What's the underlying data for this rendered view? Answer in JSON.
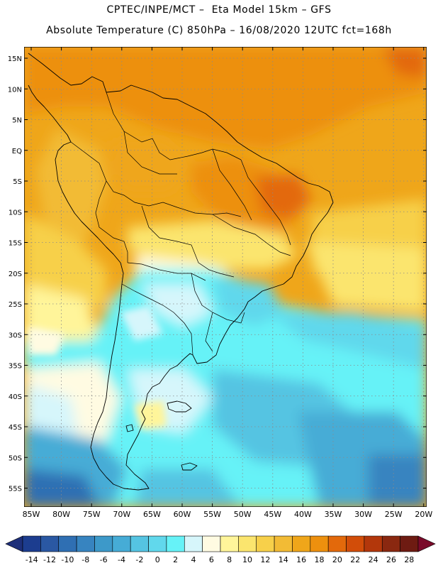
{
  "header": {
    "line1": "CPTEC/INPE/MCT –  Eta Model 15km – GFS",
    "line2": "Absolute Temperature (C) 850hPa – 16/08/2020 12UTC fct=168h"
  },
  "map": {
    "lat_labels": [
      "15N",
      "10N",
      "5N",
      "EQ",
      "5S",
      "10S",
      "15S",
      "20S",
      "25S",
      "30S",
      "35S",
      "40S",
      "45S",
      "50S",
      "55S"
    ],
    "lon_labels": [
      "85W",
      "80W",
      "75W",
      "70W",
      "65W",
      "60W",
      "55W",
      "50W",
      "45W",
      "40W",
      "35W",
      "30W",
      "25W",
      "20W"
    ]
  },
  "colorbar": {
    "labels": [
      "-14",
      "-12",
      "-10",
      "-8",
      "-6",
      "-4",
      "-2",
      "0",
      "2",
      "4",
      "6",
      "8",
      "10",
      "12",
      "14",
      "16",
      "18",
      "20",
      "22",
      "24",
      "26",
      "28"
    ],
    "colors": [
      "#1c3d8f",
      "#2a58a3",
      "#2f6fb3",
      "#3784c0",
      "#3d99c9",
      "#46acd6",
      "#55c4e2",
      "#61d8ec",
      "#66f2f7",
      "#d6f6fb",
      "#fffbe2",
      "#fff59a",
      "#fbe56e",
      "#f7d04a",
      "#f2bb35",
      "#efa61a",
      "#ed900e",
      "#e3690b",
      "#d24d09",
      "#b3370b",
      "#8a2810",
      "#6e1b12"
    ],
    "under_color": "#1d2f7a",
    "over_color": "#7a0a2a"
  }
}
